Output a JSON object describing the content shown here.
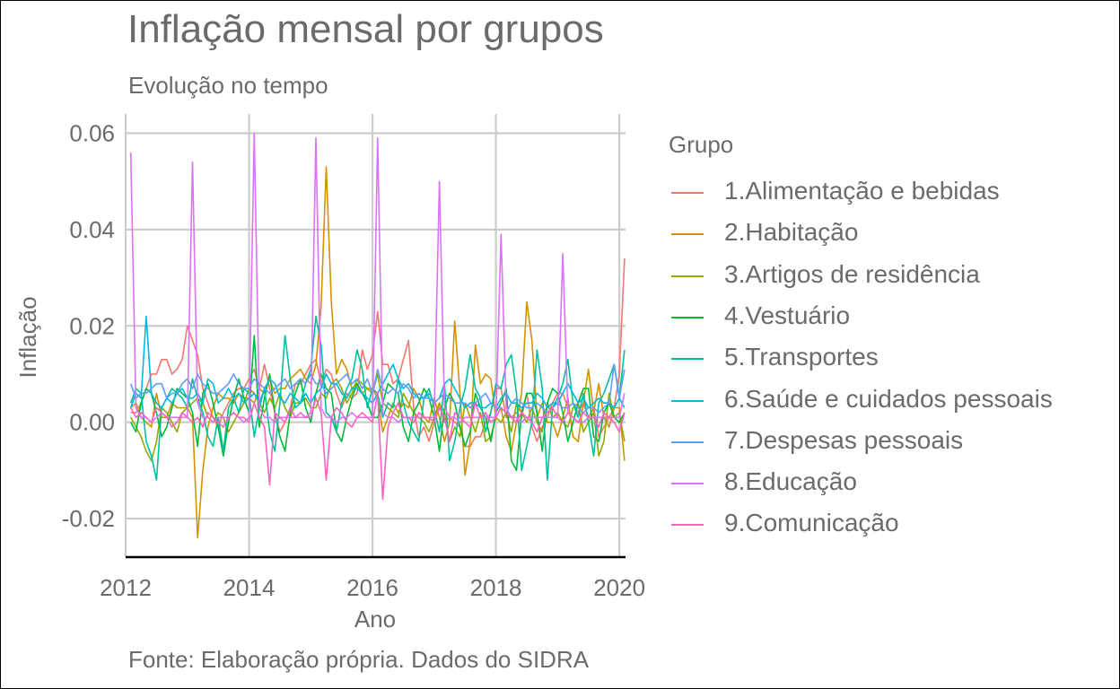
{
  "title": "Inflação mensal por grupos",
  "subtitle": "Evolução no tempo",
  "caption": "Fonte: Elaboração própria. Dados do SIDRA",
  "chart_data": {
    "type": "line",
    "title": "Inflação mensal por grupos",
    "subtitle": "Evolução no tempo",
    "xlabel": "Ano",
    "ylabel": "Inflação",
    "xlim": [
      2012.0,
      2020.1
    ],
    "ylim": [
      -0.028,
      0.064
    ],
    "x_ticks": [
      "2012",
      "2014",
      "2016",
      "2018",
      "2020"
    ],
    "y_ticks": [
      "-0.02",
      "0.00",
      "0.02",
      "0.04",
      "0.06"
    ],
    "legend_title": "Grupo",
    "legend_position": "right",
    "grid": true,
    "x_start": "2012-02",
    "x_step": "monthly",
    "series": [
      {
        "name": "1.Alimentação e bebidas",
        "color": "#F8766D",
        "values": [
          0.002,
          0.002,
          0.004,
          0.007,
          0.01,
          0.01,
          0.013,
          0.013,
          0.01,
          0.011,
          0.013,
          0.02,
          0.017,
          0.014,
          0.007,
          0.004,
          0.001,
          -0.001,
          0.002,
          0.004,
          0.006,
          0.007,
          0.007,
          0.009,
          0.011,
          0.007,
          0.012,
          0.007,
          0.002,
          -0.002,
          0.0,
          0.003,
          0.008,
          0.008,
          0.01,
          0.012,
          0.013,
          0.008,
          0.011,
          0.01,
          0.006,
          0.003,
          0.006,
          0.005,
          0.006,
          0.015,
          0.011,
          0.014,
          0.023,
          0.012,
          0.012,
          0.008,
          0.009,
          0.013,
          0.017,
          0.003,
          -0.003,
          -0.001,
          -0.004,
          0.0,
          0.004,
          0.0,
          0.001,
          0.0,
          -0.001,
          -0.005,
          -0.005,
          -0.003,
          -0.003,
          0.0,
          0.002,
          0.007,
          0.007,
          0.001,
          0.001,
          0.002,
          0.001,
          0.006,
          -0.001,
          -0.004,
          -0.001,
          0.001,
          0.004,
          0.006,
          0.006,
          0.003,
          0.004,
          0.002,
          0.004,
          0.001,
          0.003,
          -0.003,
          -0.001,
          0.001,
          0.003,
          0.01,
          0.034
        ]
      },
      {
        "name": "2.Habitação",
        "color": "#D39200",
        "values": [
          0.003,
          0.004,
          0.001,
          0.0,
          -0.001,
          0.006,
          0.001,
          0.001,
          0.004,
          0.003,
          0.003,
          0.003,
          0.001,
          -0.024,
          -0.01,
          -0.001,
          0.003,
          0.006,
          0.005,
          0.005,
          0.004,
          0.006,
          0.005,
          0.005,
          0.004,
          0.007,
          0.006,
          0.009,
          0.006,
          0.007,
          0.007,
          0.009,
          0.01,
          0.011,
          0.009,
          0.008,
          0.012,
          0.024,
          0.053,
          0.025,
          0.01,
          0.013,
          0.011,
          0.007,
          0.008,
          0.006,
          0.007,
          0.007,
          0.005,
          -0.002,
          0.001,
          0.004,
          0.002,
          0.004,
          0.003,
          0.007,
          0.005,
          0.001,
          0.0,
          0.005,
          0.001,
          -0.004,
          0.0,
          0.021,
          0.006,
          -0.011,
          -0.004,
          0.016,
          0.008,
          0.01,
          0.009,
          0.001,
          0.003,
          -0.003,
          -0.006,
          0.0,
          0.006,
          0.025,
          0.017,
          0.001,
          0.004,
          0.0,
          0.0,
          -0.003,
          0.001,
          0.005,
          -0.003,
          -0.004,
          0.004,
          0.011,
          0.002,
          0.008,
          0.001,
          -0.001,
          0.003,
          0.003,
          -0.008
        ]
      },
      {
        "name": "3.Artigos de residência",
        "color": "#93AA00",
        "values": [
          0.001,
          -0.001,
          -0.003,
          -0.006,
          -0.008,
          -0.004,
          0.003,
          0.002,
          0.0,
          -0.002,
          0.002,
          0.003,
          0.004,
          0.005,
          0.004,
          0.001,
          0.0,
          0.002,
          0.001,
          -0.002,
          0.0,
          0.002,
          0.004,
          0.007,
          0.006,
          0.004,
          0.002,
          0.005,
          0.003,
          0.006,
          0.003,
          0.001,
          0.004,
          0.004,
          0.005,
          0.003,
          0.003,
          0.006,
          0.005,
          0.008,
          0.009,
          0.007,
          0.004,
          0.006,
          0.009,
          0.008,
          0.007,
          0.006,
          0.01,
          0.004,
          0.003,
          0.002,
          0.001,
          0.006,
          0.004,
          0.002,
          0.001,
          0.0,
          -0.002,
          0.001,
          0.004,
          0.002,
          -0.004,
          -0.001,
          -0.003,
          0.004,
          0.001,
          -0.002,
          0.002,
          -0.004,
          -0.003,
          0.001,
          0.0,
          0.002,
          -0.002,
          0.004,
          0.002,
          0.0,
          0.003,
          0.0,
          -0.002,
          0.004,
          0.001,
          0.002,
          0.0,
          -0.001,
          0.003,
          0.004,
          -0.002,
          0.0,
          0.002,
          -0.007,
          -0.004,
          0.006,
          0.001,
          0.002,
          -0.004
        ]
      },
      {
        "name": "4.Vestuário",
        "color": "#00BA38",
        "values": [
          0.0,
          -0.002,
          0.004,
          0.007,
          0.006,
          0.002,
          -0.003,
          -0.001,
          0.003,
          0.007,
          0.006,
          0.005,
          0.002,
          -0.005,
          0.006,
          0.008,
          0.004,
          -0.001,
          -0.007,
          0.0,
          0.005,
          0.009,
          0.005,
          0.002,
          0.018,
          -0.001,
          0.005,
          0.01,
          0.002,
          -0.003,
          -0.006,
          0.002,
          0.006,
          0.009,
          0.003,
          0.0,
          0.006,
          0.01,
          0.007,
          0.006,
          -0.002,
          -0.004,
          0.001,
          0.005,
          0.008,
          0.006,
          0.004,
          0.001,
          0.001,
          0.004,
          0.008,
          0.007,
          0.006,
          -0.001,
          -0.004,
          0.002,
          0.004,
          0.007,
          0.005,
          0.001,
          -0.006,
          0.003,
          0.006,
          0.004,
          -0.001,
          -0.005,
          -0.002,
          0.006,
          0.003,
          0.001,
          -0.004,
          0.002,
          0.004,
          0.007,
          -0.008,
          -0.01,
          0.002,
          0.006,
          0.006,
          0.002,
          -0.006,
          0.004,
          0.007,
          0.006,
          0.002,
          -0.004,
          0.0,
          0.004,
          0.007,
          0.007,
          -0.003,
          -0.004,
          0.002,
          0.004,
          0.001,
          0.0,
          0.002
        ]
      },
      {
        "name": "5.Transportes",
        "color": "#00C19F",
        "values": [
          0.004,
          0.007,
          0.006,
          -0.004,
          -0.007,
          -0.012,
          0.003,
          0.005,
          0.007,
          0.006,
          0.005,
          0.003,
          0.009,
          0.005,
          0.002,
          -0.003,
          -0.005,
          0.001,
          -0.006,
          0.003,
          0.005,
          0.002,
          0.007,
          0.006,
          -0.003,
          0.003,
          0.007,
          -0.002,
          -0.006,
          0.004,
          0.018,
          0.009,
          0.003,
          0.004,
          0.008,
          0.011,
          0.022,
          0.016,
          0.002,
          0.001,
          -0.002,
          0.004,
          0.007,
          0.009,
          0.015,
          0.011,
          0.003,
          0.007,
          0.006,
          0.001,
          0.004,
          0.003,
          0.009,
          0.004,
          0.0,
          -0.002,
          -0.004,
          0.005,
          0.007,
          0.003,
          -0.002,
          0.008,
          -0.008,
          -0.004,
          0.003,
          0.007,
          0.014,
          0.007,
          0.005,
          -0.002,
          0.002,
          0.008,
          0.007,
          0.012,
          0.014,
          0.006,
          -0.01,
          -0.005,
          0.0,
          0.015,
          0.007,
          -0.012,
          0.003,
          0.005,
          0.008,
          0.013,
          0.004,
          0.001,
          0.006,
          0.0,
          -0.007,
          0.004,
          0.006,
          0.009,
          0.012,
          0.005,
          0.015
        ]
      },
      {
        "name": "6.Saúde e cuidados pessoais",
        "color": "#00B9E3",
        "values": [
          0.003,
          0.006,
          0.005,
          0.022,
          0.006,
          0.004,
          0.003,
          0.005,
          0.004,
          0.006,
          0.007,
          0.005,
          0.005,
          0.006,
          0.004,
          0.009,
          0.008,
          0.004,
          0.005,
          0.007,
          0.005,
          0.006,
          0.004,
          0.005,
          0.006,
          0.004,
          0.007,
          0.009,
          0.008,
          0.005,
          0.004,
          0.006,
          0.005,
          0.004,
          0.006,
          0.004,
          0.006,
          0.007,
          0.01,
          0.008,
          0.008,
          0.006,
          0.005,
          0.007,
          0.007,
          0.006,
          0.005,
          0.004,
          0.006,
          0.008,
          0.01,
          0.012,
          0.009,
          0.007,
          0.008,
          0.006,
          0.005,
          0.005,
          0.006,
          0.004,
          0.005,
          0.008,
          0.009,
          0.007,
          0.005,
          0.003,
          0.004,
          0.004,
          0.003,
          0.003,
          0.004,
          0.003,
          0.005,
          0.006,
          0.004,
          0.004,
          0.003,
          0.004,
          0.004,
          0.006,
          0.005,
          0.003,
          0.004,
          0.004,
          0.006,
          0.008,
          0.006,
          0.004,
          0.005,
          0.003,
          0.004,
          0.005,
          0.004,
          0.004,
          0.003,
          0.005,
          0.003
        ]
      },
      {
        "name": "7.Despesas pessoais",
        "color": "#619CFF",
        "values": [
          0.008,
          0.005,
          0.006,
          0.006,
          0.007,
          0.008,
          0.008,
          0.005,
          0.006,
          0.006,
          0.008,
          0.009,
          0.007,
          0.01,
          0.008,
          0.007,
          0.006,
          0.006,
          0.007,
          0.008,
          0.01,
          0.008,
          0.007,
          0.007,
          0.009,
          0.008,
          0.007,
          0.006,
          0.007,
          0.008,
          0.009,
          0.007,
          0.008,
          0.009,
          0.008,
          0.01,
          0.008,
          0.008,
          0.006,
          0.007,
          0.008,
          0.009,
          0.01,
          0.008,
          0.009,
          0.007,
          0.009,
          0.006,
          0.011,
          0.007,
          0.006,
          0.007,
          0.006,
          0.008,
          0.007,
          0.005,
          0.006,
          0.005,
          0.005,
          0.004,
          0.005,
          0.006,
          0.005,
          0.004,
          0.004,
          0.004,
          0.003,
          0.004,
          0.005,
          0.006,
          0.004,
          0.003,
          0.003,
          0.002,
          0.004,
          0.005,
          0.004,
          0.003,
          0.003,
          0.004,
          0.003,
          0.002,
          0.003,
          0.004,
          0.003,
          0.003,
          0.004,
          0.003,
          0.002,
          0.003,
          0.003,
          0.002,
          0.003,
          0.004,
          0.012,
          0.005,
          0.011
        ]
      },
      {
        "name": "8.Educação",
        "color": "#DB72FB",
        "values": [
          0.056,
          0.003,
          0.001,
          0.001,
          0.0,
          0.001,
          0.002,
          0.001,
          0.001,
          0.001,
          0.001,
          0.001,
          0.054,
          0.004,
          0.001,
          0.001,
          0.0,
          0.001,
          0.001,
          0.001,
          0.002,
          0.001,
          0.0,
          0.001,
          0.06,
          0.003,
          0.001,
          0.001,
          0.0,
          0.001,
          0.001,
          0.001,
          0.001,
          0.001,
          0.001,
          0.002,
          0.059,
          0.003,
          0.001,
          0.001,
          0.0,
          0.001,
          0.001,
          0.002,
          0.001,
          0.001,
          0.001,
          0.001,
          0.059,
          0.002,
          0.001,
          0.001,
          0.0,
          0.001,
          0.001,
          0.001,
          0.001,
          0.001,
          0.001,
          0.001,
          0.05,
          0.003,
          0.001,
          0.001,
          0.0,
          0.001,
          0.001,
          0.001,
          0.001,
          0.001,
          0.001,
          0.001,
          0.039,
          0.003,
          0.001,
          0.001,
          0.0,
          0.001,
          0.001,
          0.001,
          0.001,
          0.001,
          0.001,
          0.001,
          0.035,
          0.002,
          0.001,
          0.0,
          0.0,
          0.001,
          0.001,
          0.001,
          0.001,
          0.001,
          0.001,
          0.001,
          0.006
        ]
      },
      {
        "name": "9.Comunicação",
        "color": "#FF61C3",
        "values": [
          0.003,
          0.001,
          0.002,
          0.001,
          0.0,
          0.003,
          0.002,
          0.001,
          -0.001,
          0.0,
          0.002,
          0.001,
          0.0,
          0.001,
          -0.001,
          0.002,
          0.001,
          0.0,
          -0.001,
          0.001,
          0.002,
          0.001,
          0.001,
          0.0,
          0.004,
          0.001,
          -0.001,
          -0.013,
          0.002,
          0.001,
          0.0,
          0.003,
          0.001,
          0.002,
          0.001,
          0.001,
          0.005,
          0.002,
          -0.012,
          0.001,
          0.003,
          0.002,
          0.0,
          -0.001,
          0.001,
          0.002,
          0.001,
          0.0,
          0.006,
          -0.016,
          -0.001,
          0.002,
          0.004,
          0.001,
          0.001,
          0.0,
          0.002,
          0.001,
          0.001,
          0.0,
          0.003,
          0.001,
          -0.004,
          0.002,
          0.001,
          0.0,
          -0.001,
          0.004,
          0.001,
          0.002,
          0.0,
          0.001,
          0.003,
          0.002,
          0.001,
          0.0,
          0.002,
          0.001,
          0.0,
          -0.002,
          0.001,
          0.002,
          0.003,
          0.001,
          0.0,
          0.002,
          0.001,
          0.0,
          0.002,
          0.001,
          0.001,
          -0.001,
          0.002,
          0.001,
          0.0,
          -0.002,
          0.002
        ]
      }
    ]
  }
}
